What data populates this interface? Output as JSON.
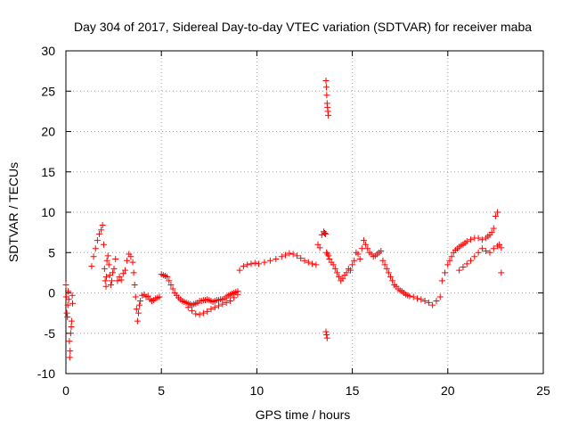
{
  "chart_data": {
    "type": "scatter",
    "title": "Day 304 of 2017, Sidereal Day-to-day VTEC variation (SDTVAR) for receiver maba",
    "xlabel": "GPS time / hours",
    "ylabel": "SDTVAR / TECUs",
    "xlim": [
      0,
      25
    ],
    "ylim": [
      -10,
      30
    ],
    "xticks": [
      0,
      5,
      10,
      15,
      20,
      25
    ],
    "yticks": [
      -10,
      -5,
      0,
      5,
      10,
      15,
      20,
      25,
      30
    ],
    "grid": true,
    "marker": "+",
    "color": "#ff0000",
    "series": [
      {
        "name": "SDTVAR",
        "x": [
          0.0,
          0.02,
          0.05,
          0.08,
          0.1,
          0.12,
          0.15,
          0.18,
          0.2,
          0.22,
          0.25,
          0.28,
          0.3,
          0.33,
          0.35,
          1.35,
          1.45,
          1.55,
          1.65,
          1.75,
          1.85,
          1.92,
          1.98,
          2.02,
          2.06,
          2.1,
          2.12,
          2.15,
          2.2,
          2.25,
          2.3,
          2.35,
          2.4,
          2.45,
          2.52,
          2.6,
          2.7,
          2.8,
          2.9,
          3.0,
          3.1,
          3.2,
          3.3,
          3.4,
          3.5,
          3.55,
          3.6,
          3.65,
          3.7,
          3.75,
          3.8,
          3.85,
          3.9,
          4.0,
          4.1,
          4.2,
          4.3,
          4.4,
          4.5,
          4.6,
          4.7,
          4.8,
          4.9,
          5.0,
          5.1,
          5.2,
          5.3,
          5.4,
          5.5,
          5.6,
          5.7,
          5.8,
          5.9,
          6.0,
          6.1,
          6.2,
          6.3,
          6.4,
          6.5,
          6.6,
          6.7,
          6.8,
          6.9,
          7.0,
          7.1,
          7.2,
          7.3,
          7.4,
          7.5,
          7.6,
          7.7,
          7.8,
          7.9,
          8.0,
          8.1,
          8.2,
          8.3,
          8.4,
          8.5,
          8.6,
          8.7,
          8.8,
          8.9,
          9.0,
          6.4,
          6.6,
          6.8,
          7.0,
          7.2,
          7.4,
          7.6,
          7.8,
          8.0,
          8.2,
          8.4,
          8.6,
          8.8,
          9.0,
          9.1,
          9.3,
          9.5,
          9.7,
          9.9,
          10.1,
          10.4,
          10.7,
          11.0,
          11.3,
          11.5,
          11.7,
          11.9,
          12.1,
          12.3,
          12.5,
          12.7,
          12.9,
          13.1,
          13.2,
          13.3,
          13.4,
          13.5,
          13.55,
          13.6,
          13.65,
          13.7,
          13.75,
          13.62,
          13.64,
          13.66,
          13.68,
          13.7,
          13.72,
          13.74,
          13.62,
          13.65,
          13.68,
          13.8,
          13.9,
          14.0,
          14.1,
          14.2,
          14.3,
          14.4,
          14.5,
          14.6,
          14.7,
          14.8,
          14.9,
          15.0,
          15.1,
          15.2,
          15.3,
          15.4,
          15.5,
          15.6,
          15.7,
          15.8,
          15.9,
          16.0,
          16.1,
          16.2,
          16.3,
          16.4,
          16.5,
          16.6,
          16.7,
          16.8,
          16.9,
          17.0,
          17.1,
          17.2,
          17.3,
          17.4,
          17.5,
          17.6,
          17.7,
          17.8,
          17.9,
          18.0,
          18.2,
          18.4,
          18.6,
          18.8,
          19.0,
          19.2,
          19.4,
          19.6,
          19.7,
          19.85,
          20.0,
          20.1,
          20.2,
          20.3,
          20.4,
          20.5,
          20.6,
          20.7,
          20.8,
          20.9,
          21.0,
          21.2,
          21.4,
          21.6,
          21.8,
          22.0,
          22.1,
          22.2,
          22.3,
          22.4,
          22.5,
          22.6,
          22.7,
          22.8,
          20.6,
          20.8,
          21.0,
          21.2,
          21.4,
          21.6,
          21.8,
          22.0,
          22.2,
          22.4,
          22.6,
          22.8
        ],
        "y": [
          1.0,
          -0.5,
          -2.5,
          -3.0,
          -1.5,
          0.2,
          -0.8,
          -6.0,
          -8.0,
          -7.2,
          -5.0,
          -4.2,
          -3.5,
          -0.3,
          -1.3,
          3.3,
          4.5,
          5.5,
          6.5,
          7.3,
          7.8,
          8.4,
          6.0,
          3.0,
          1.5,
          0.8,
          2.0,
          4.0,
          4.6,
          3.5,
          2.2,
          1.0,
          1.5,
          2.5,
          3.0,
          4.2,
          1.5,
          2.0,
          1.6,
          2.4,
          2.8,
          4.0,
          4.8,
          4.5,
          3.8,
          2.5,
          1.0,
          -0.5,
          -2.0,
          -3.5,
          -2.5,
          -1.5,
          -1.0,
          -0.3,
          -0.2,
          -0.5,
          -0.4,
          -0.8,
          -1.0,
          -0.9,
          -0.7,
          -0.6,
          -0.5,
          2.3,
          2.2,
          2.1,
          2.0,
          1.5,
          1.0,
          0.5,
          0.0,
          -0.3,
          -0.6,
          -0.8,
          -1.0,
          -1.1,
          -1.2,
          -1.3,
          -1.4,
          -1.5,
          -1.4,
          -1.3,
          -1.2,
          -1.0,
          -1.0,
          -0.9,
          -0.9,
          -0.8,
          -0.9,
          -1.0,
          -1.1,
          -1.0,
          -0.9,
          -0.9,
          -0.8,
          -0.8,
          -0.7,
          -0.5,
          -0.3,
          -0.2,
          -0.1,
          0.0,
          0.1,
          0.2,
          -1.8,
          -2.2,
          -2.6,
          -2.7,
          -2.5,
          -2.3,
          -2.0,
          -1.8,
          -1.6,
          -1.4,
          -1.2,
          -1.0,
          -0.6,
          -0.2,
          2.8,
          3.3,
          3.5,
          3.6,
          3.7,
          3.6,
          3.8,
          4.0,
          4.2,
          4.5,
          4.7,
          4.9,
          4.8,
          4.6,
          4.3,
          4.0,
          3.8,
          3.6,
          3.5,
          6.0,
          5.6,
          7.2,
          7.6,
          7.4,
          7.3,
          5.0,
          4.8,
          4.6,
          26.3,
          25.5,
          24.5,
          23.5,
          23.0,
          22.5,
          22.0,
          -4.8,
          -5.2,
          -5.6,
          4.2,
          3.8,
          3.5,
          3.0,
          2.5,
          2.0,
          1.5,
          1.8,
          2.2,
          2.5,
          3.0,
          2.8,
          3.5,
          4.0,
          5.0,
          4.8,
          4.2,
          5.5,
          6.5,
          6.0,
          5.5,
          5.0,
          4.8,
          4.5,
          4.6,
          4.8,
          5.0,
          5.2,
          4.0,
          3.5,
          3.0,
          2.5,
          2.0,
          1.5,
          1.0,
          0.8,
          0.5,
          0.3,
          0.2,
          0.0,
          -0.2,
          -0.3,
          -0.4,
          -0.5,
          -0.7,
          -0.8,
          -1.0,
          -1.2,
          -1.5,
          -1.0,
          -0.5,
          1.5,
          2.5,
          3.5,
          4.0,
          4.5,
          5.0,
          5.3,
          5.5,
          5.7,
          5.9,
          6.0,
          6.2,
          6.4,
          6.6,
          6.8,
          6.8,
          6.6,
          6.8,
          7.0,
          7.2,
          7.5,
          8.0,
          9.5,
          10.0,
          6.0,
          2.5,
          2.8,
          3.2,
          3.6,
          4.0,
          4.5,
          5.0,
          5.5,
          5.2,
          5.0,
          5.5,
          5.8,
          5.6
        ]
      }
    ]
  }
}
